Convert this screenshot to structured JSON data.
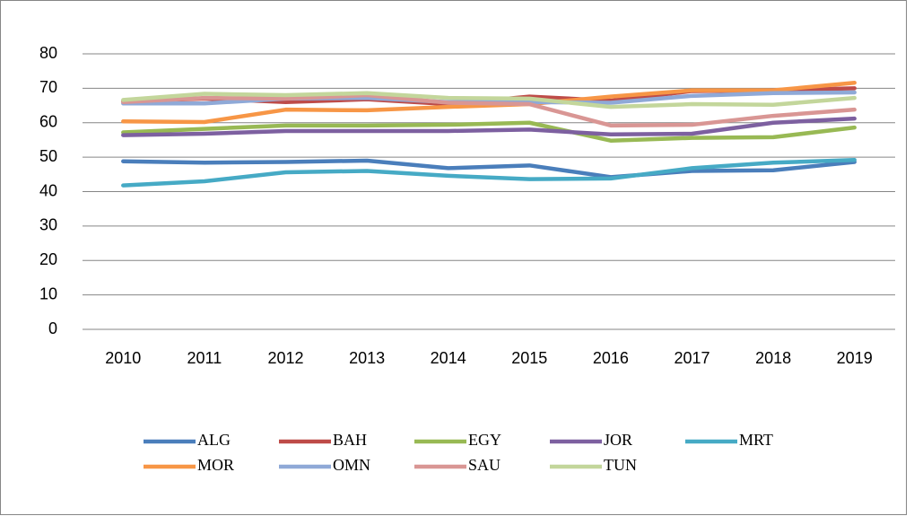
{
  "chart_data": {
    "type": "line",
    "categories": [
      "2010",
      "2011",
      "2012",
      "2013",
      "2014",
      "2015",
      "2016",
      "2017",
      "2018",
      "2019"
    ],
    "ylim": [
      0,
      80
    ],
    "yticks": [
      0,
      10,
      20,
      30,
      40,
      50,
      60,
      70,
      80
    ],
    "grid": true,
    "legend": "bottom",
    "series": [
      {
        "name": "ALG",
        "color": "#4a7ebb",
        "values": [
          48.8,
          48.4,
          48.6,
          49.0,
          46.8,
          47.6,
          44.2,
          46.0,
          46.2,
          48.6
        ]
      },
      {
        "name": "BAH",
        "color": "#be4b48",
        "values": [
          66.2,
          67.0,
          66.0,
          66.8,
          65.4,
          67.6,
          66.4,
          69.2,
          69.4,
          70.0
        ]
      },
      {
        "name": "EGY",
        "color": "#98b954",
        "values": [
          57.2,
          58.2,
          59.2,
          59.2,
          59.4,
          60.0,
          54.8,
          55.6,
          55.8,
          58.6
        ]
      },
      {
        "name": "JOR",
        "color": "#7d60a0",
        "values": [
          56.4,
          56.8,
          57.6,
          57.6,
          57.6,
          58.0,
          56.6,
          56.8,
          60.0,
          61.2
        ]
      },
      {
        "name": "MRT",
        "color": "#46aac5",
        "values": [
          41.8,
          43.0,
          45.6,
          46.0,
          44.6,
          43.6,
          43.8,
          46.8,
          48.4,
          49.2
        ]
      },
      {
        "name": "MOR",
        "color": "#f79646",
        "values": [
          60.4,
          60.2,
          63.8,
          63.6,
          64.6,
          65.4,
          67.6,
          69.4,
          69.4,
          71.6
        ]
      },
      {
        "name": "OMN",
        "color": "#8fa9d7",
        "values": [
          65.6,
          65.6,
          67.0,
          67.2,
          66.0,
          66.0,
          65.8,
          67.8,
          68.6,
          68.8
        ]
      },
      {
        "name": "SAU",
        "color": "#d99694",
        "values": [
          66.0,
          67.2,
          67.0,
          68.0,
          65.8,
          65.4,
          59.2,
          59.4,
          62.0,
          63.8
        ]
      },
      {
        "name": "TUN",
        "color": "#c3d69b",
        "values": [
          66.6,
          68.4,
          68.0,
          68.6,
          67.2,
          67.0,
          64.6,
          65.4,
          65.2,
          67.2
        ]
      }
    ]
  }
}
